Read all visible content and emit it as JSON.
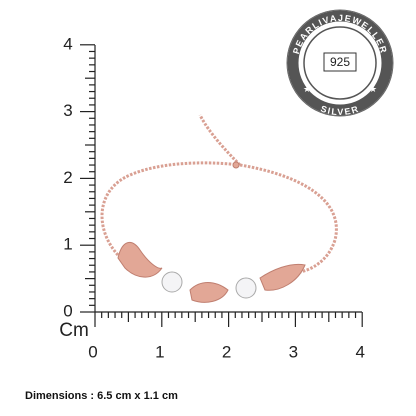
{
  "ruler": {
    "vertical_labels": [
      "4",
      "3",
      "2",
      "1",
      "0"
    ],
    "horizontal_labels": [
      "0",
      "1",
      "2",
      "3",
      "4"
    ],
    "unit": "Cm"
  },
  "badge": {
    "ring_top": "PEARLIVAJEWELLER",
    "ring_bottom": "SILVER",
    "purity": "925"
  },
  "caption": "Dimensions : 6.5 cm x 1.1 cm"
}
